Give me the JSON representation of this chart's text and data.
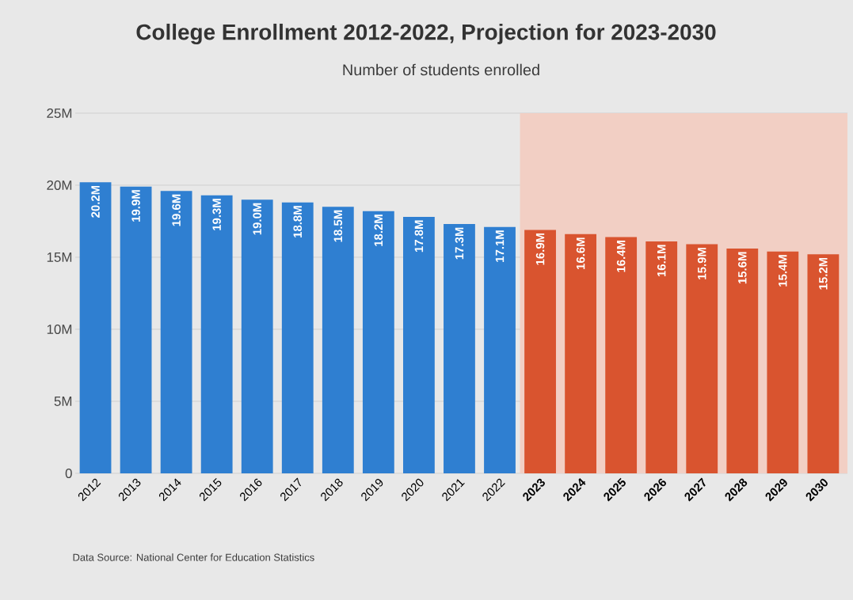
{
  "chart_data": {
    "type": "bar",
    "title": "College Enrollment 2012-2022, Projection for 2023-2030",
    "subtitle": "Number of students enrolled",
    "categories": [
      "2012",
      "2013",
      "2014",
      "2015",
      "2016",
      "2017",
      "2018",
      "2019",
      "2020",
      "2021",
      "2022",
      "2023",
      "2024",
      "2025",
      "2026",
      "2027",
      "2028",
      "2029",
      "2030"
    ],
    "values": [
      20.2,
      19.9,
      19.6,
      19.3,
      19.0,
      18.8,
      18.5,
      18.2,
      17.8,
      17.3,
      17.1,
      16.9,
      16.6,
      16.4,
      16.1,
      15.9,
      15.6,
      15.4,
      15.2
    ],
    "colors": [
      "#2f7fd1",
      "#2f7fd1",
      "#2f7fd1",
      "#2f7fd1",
      "#2f7fd1",
      "#2f7fd1",
      "#2f7fd1",
      "#2f7fd1",
      "#2f7fd1",
      "#2f7fd1",
      "#2f7fd1",
      "#d9542f",
      "#d9542f",
      "#d9542f",
      "#d9542f",
      "#d9542f",
      "#d9542f",
      "#d9542f",
      "#d9542f"
    ],
    "value_labels": [
      "20.2M",
      "19.9M",
      "19.6M",
      "19.3M",
      "19.0M",
      "18.8M",
      "18.5M",
      "18.2M",
      "17.8M",
      "17.3M",
      "17.1M",
      "16.9M",
      "16.6M",
      "16.4M",
      "16.1M",
      "15.9M",
      "15.6M",
      "15.4M",
      "15.2M"
    ],
    "ylim": [
      0,
      25
    ],
    "yticks": [
      {
        "value": 0,
        "label": "0"
      },
      {
        "value": 5,
        "label": "5M"
      },
      {
        "value": 10,
        "label": "10M"
      },
      {
        "value": 15,
        "label": "15M"
      },
      {
        "value": 20,
        "label": "20M"
      },
      {
        "value": 25,
        "label": "25M"
      }
    ],
    "bands": [
      {
        "axis": "x",
        "from": "2023",
        "to": "2030",
        "color": "#f2cfc4"
      }
    ],
    "grid": "y",
    "annotations": [
      "Data Source: National Center for Education Statistics"
    ]
  }
}
